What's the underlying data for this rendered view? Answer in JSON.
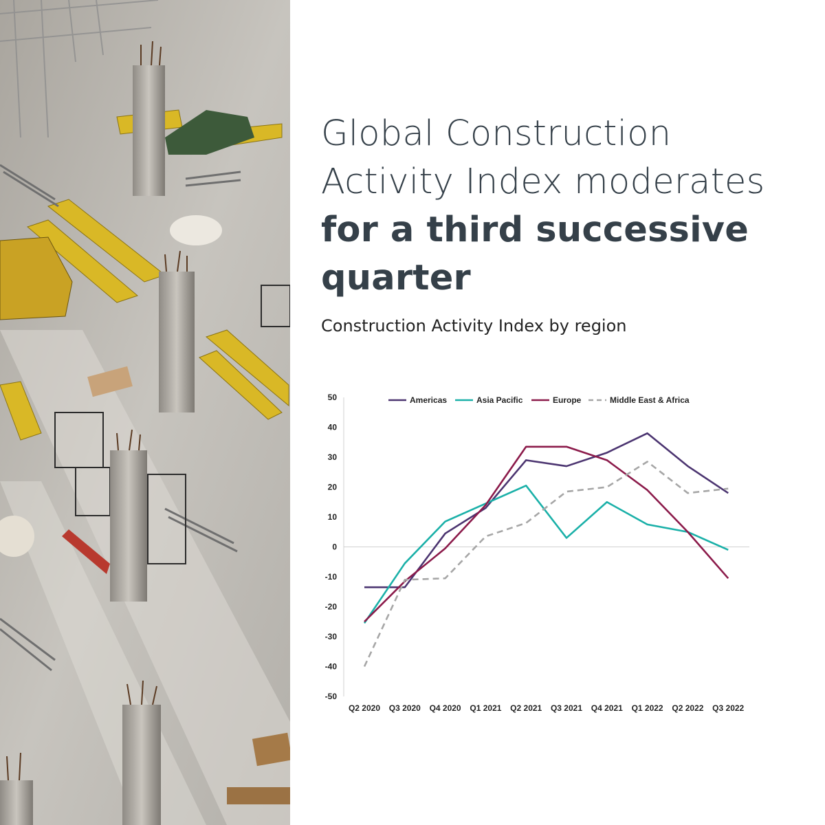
{
  "headline": {
    "line1": "Global Construction",
    "line2": "Activity Index moderates",
    "line3": "for a third successive",
    "line4": "quarter"
  },
  "subtitle": "Construction Activity Index by region",
  "chart_data": {
    "type": "line",
    "title": "",
    "xlabel": "",
    "ylabel": "",
    "categories": [
      "Q2 2020",
      "Q3 2020",
      "Q4 2020",
      "Q1 2021",
      "Q2 2021",
      "Q3 2021",
      "Q4 2021",
      "Q1 2022",
      "Q2 2022",
      "Q3 2022"
    ],
    "ylim": [
      -50,
      50
    ],
    "yticks": [
      50,
      40,
      30,
      20,
      10,
      0,
      -10,
      -20,
      -30,
      -40,
      -50
    ],
    "legend": "top",
    "grid": false,
    "series": [
      {
        "name": "Americas",
        "color": "#4b3470",
        "dash": false,
        "values": [
          -13.5,
          -13.5,
          4.5,
          13,
          29,
          27,
          31.5,
          38,
          27,
          18
        ]
      },
      {
        "name": "Asia Pacific",
        "color": "#1ab0a8",
        "dash": false,
        "values": [
          -25.5,
          -5.5,
          8.5,
          14.5,
          20.5,
          3,
          15,
          7.5,
          5,
          -1
        ]
      },
      {
        "name": "Europe",
        "color": "#8b1a4a",
        "dash": false,
        "values": [
          -25,
          -11.5,
          -0.5,
          14,
          33.5,
          33.5,
          29,
          19,
          5,
          -10.5
        ]
      },
      {
        "name": "Middle East & Africa",
        "color": "#a6a6a6",
        "dash": true,
        "values": [
          -40,
          -11,
          -10.5,
          3.5,
          8,
          18.5,
          20,
          28.5,
          18,
          19.5
        ]
      }
    ]
  }
}
